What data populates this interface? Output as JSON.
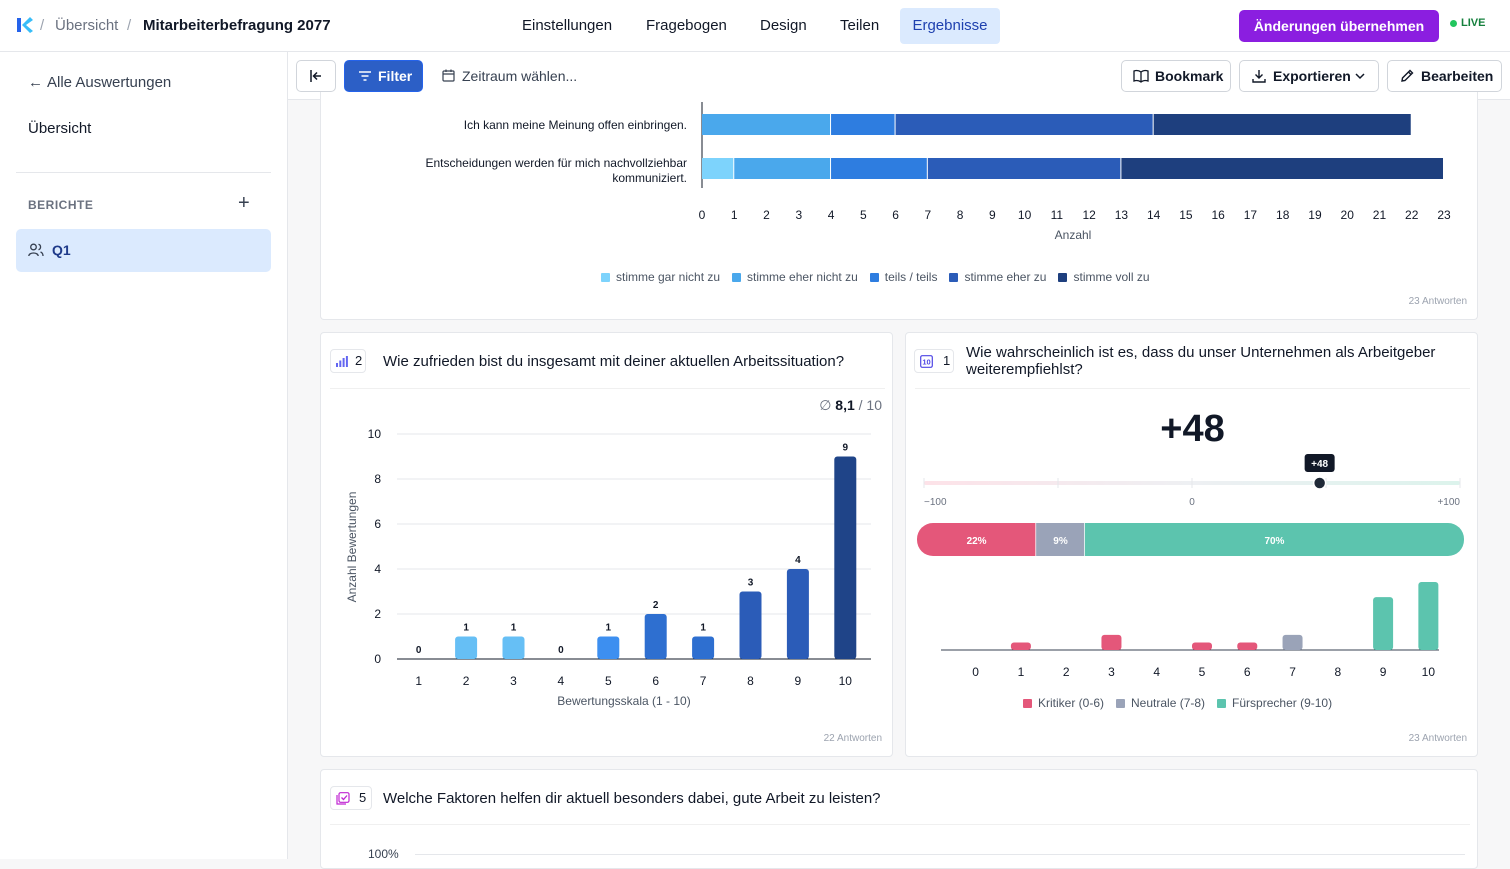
{
  "breadcrumb": {
    "root": "Übersicht",
    "current": "Mitarbeiterbefragung 2077"
  },
  "nav": {
    "tabs": [
      "Einstellungen",
      "Fragebogen",
      "Design",
      "Teilen",
      "Ergebnisse"
    ],
    "active": "Ergebnisse"
  },
  "header": {
    "apply_label": "Änderungen übernehmen",
    "live_label": "LIVE"
  },
  "sidebar": {
    "back": "Alle Auswertungen",
    "overview": "Übersicht",
    "reports_heading": "BERICHTE",
    "reports": [
      {
        "label": "Q1"
      }
    ]
  },
  "toolbar": {
    "filter": "Filter",
    "timerange": "Zeitraum wählen...",
    "bookmark": "Bookmark",
    "export": "Exportieren",
    "edit": "Bearbeiten"
  },
  "colors": {
    "accent": "#2c5fc6",
    "apply": "#8b1ee0",
    "scale": [
      "#7dd3fc",
      "#4aa8ec",
      "#2e7de0",
      "#2b5cb8",
      "#1e3f7e"
    ],
    "critic": "#e4577a",
    "neutral": "#9aa3b8",
    "promoter": "#5cc4ae"
  },
  "card1": {
    "footer": "23 Antworten",
    "xlabel": "Anzahl",
    "xticks": [
      "0",
      "1",
      "2",
      "3",
      "4",
      "5",
      "6",
      "7",
      "8",
      "9",
      "10",
      "11",
      "12",
      "13",
      "14",
      "15",
      "16",
      "17",
      "18",
      "19",
      "20",
      "21",
      "22",
      "23"
    ],
    "legend": [
      "stimme gar nicht zu",
      "stimme eher nicht zu",
      "teils / teils",
      "stimme eher zu",
      "stimme voll zu"
    ]
  },
  "card2": {
    "number": "2",
    "question": "Wie zufrieden bist du insgesamt mit deiner aktuellen Arbeitssituation?",
    "avg_symbol": "∅",
    "avg": "8,1",
    "avg_max": "/ 10",
    "footer": "22 Antworten"
  },
  "card3": {
    "number": "1",
    "question": "Wie wahrscheinlich ist es, dass du unser Unternehmen als Arbeitgeber weiterempfiehlst?",
    "nps": "+48",
    "nps_value": 48,
    "marker": "+48",
    "scale_min": "−100",
    "scale_mid": "0",
    "scale_max": "+100",
    "split": [
      {
        "label": "22%",
        "value": 22,
        "color": "#e4577a"
      },
      {
        "label": "9%",
        "value": 9,
        "color": "#9aa3b8"
      },
      {
        "label": "70%",
        "value": 70,
        "color": "#5cc4ae"
      }
    ],
    "legend": [
      "Kritiker (0-6)",
      "Neutrale (7-8)",
      "Fürsprecher (9-10)"
    ],
    "footer": "23 Antworten"
  },
  "card4": {
    "number": "5",
    "question": "Welche Faktoren helfen dir aktuell besonders dabei, gute Arbeit zu leisten?",
    "ytick_top": "100%"
  },
  "chart_data": [
    {
      "type": "bar",
      "orientation": "horizontal",
      "stacked": true,
      "categories": [
        "Ich kann meine Meinung offen einbringen.",
        "Entscheidungen werden für mich nachvollziehbar kommuniziert."
      ],
      "series": [
        {
          "name": "stimme gar nicht zu",
          "values": [
            0,
            1
          ]
        },
        {
          "name": "stimme eher nicht zu",
          "values": [
            4,
            3
          ]
        },
        {
          "name": "teils / teils",
          "values": [
            2,
            3
          ]
        },
        {
          "name": "stimme eher zu",
          "values": [
            8,
            6
          ]
        },
        {
          "name": "stimme voll zu",
          "values": [
            8,
            10
          ]
        }
      ],
      "xlabel": "Anzahl",
      "xlim": [
        0,
        23
      ],
      "legend": "bottom"
    },
    {
      "type": "bar",
      "categories": [
        "1",
        "2",
        "3",
        "4",
        "5",
        "6",
        "7",
        "8",
        "9",
        "10"
      ],
      "values": [
        0,
        1,
        1,
        0,
        1,
        2,
        1,
        3,
        4,
        9
      ],
      "xlabel": "Bewertungsskala (1 - 10)",
      "ylabel": "Anzahl Bewertungen",
      "ylim": [
        0,
        10
      ],
      "yticks": [
        "0",
        "2",
        "4",
        "6",
        "8",
        "10"
      ]
    },
    {
      "type": "bar",
      "categories": [
        "0",
        "1",
        "2",
        "3",
        "4",
        "5",
        "6",
        "7",
        "8",
        "9",
        "10"
      ],
      "values": [
        0,
        1,
        0,
        2,
        0,
        1,
        1,
        2,
        0,
        7,
        9
      ],
      "groups": [
        "Kritiker (0-6)",
        "Kritiker (0-6)",
        "Kritiker (0-6)",
        "Kritiker (0-6)",
        "Kritiker (0-6)",
        "Kritiker (0-6)",
        "Kritiker (0-6)",
        "Neutrale (7-8)",
        "Neutrale (7-8)",
        "Fürsprecher (9-10)",
        "Fürsprecher (9-10)"
      ],
      "legend": "bottom"
    }
  ]
}
